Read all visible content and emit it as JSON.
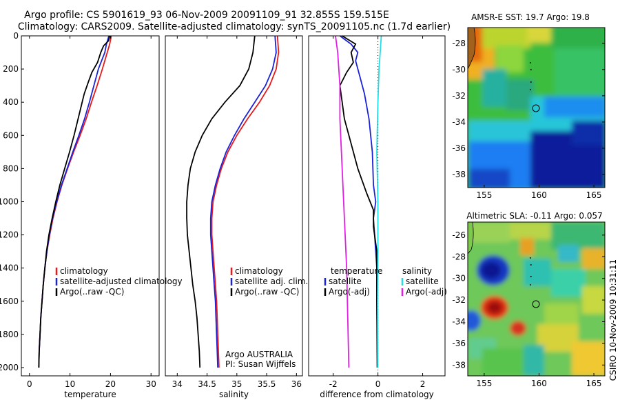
{
  "header": {
    "line1": "Argo profile: CS 5901619_93 06-Nov-2009 20091109_91 32.855S 159.515E",
    "line2": "Climatology: CARS2009. Satellite-adjusted climatology: synTS_20091105.nc (1.7d earlier)"
  },
  "side_label": "CSIRO 10-Nov-2009 10:31:11",
  "colors": {
    "red": "#e8191c",
    "blue": "#1a22d8",
    "black": "#000000",
    "cyan": "#22dde6",
    "magenta": "#e020e0"
  },
  "chart_data": [
    {
      "id": "temperature",
      "type": "line",
      "xlabel": "temperature",
      "ylabel": "",
      "xlim": [
        -2,
        32
      ],
      "ylim": [
        2050,
        0
      ],
      "xticks": [
        0,
        10,
        20,
        30
      ],
      "yticks": [
        0,
        200,
        400,
        600,
        800,
        1000,
        1200,
        1400,
        1600,
        1800,
        2000
      ],
      "series": [
        {
          "name": "climatology",
          "color": "#e8191c",
          "points": [
            [
              20.2,
              0
            ],
            [
              19.8,
              50
            ],
            [
              19.2,
              100
            ],
            [
              18.0,
              200
            ],
            [
              16.7,
              300
            ],
            [
              15.3,
              400
            ],
            [
              14.0,
              500
            ],
            [
              12.5,
              600
            ],
            [
              10.9,
              700
            ],
            [
              9.4,
              800
            ],
            [
              8.0,
              900
            ],
            [
              6.8,
              1000
            ],
            [
              5.8,
              1100
            ],
            [
              5.0,
              1200
            ],
            [
              4.3,
              1300
            ],
            [
              3.8,
              1400
            ],
            [
              3.4,
              1500
            ],
            [
              3.1,
              1600
            ],
            [
              2.8,
              1700
            ],
            [
              2.6,
              1800
            ],
            [
              2.4,
              1900
            ],
            [
              2.3,
              2000
            ]
          ]
        },
        {
          "name": "satellite-adjusted climatology",
          "color": "#1a22d8",
          "points": [
            [
              19.6,
              0
            ],
            [
              19.0,
              50
            ],
            [
              18.6,
              100
            ],
            [
              17.0,
              200
            ],
            [
              15.9,
              300
            ],
            [
              14.8,
              400
            ],
            [
              13.6,
              500
            ],
            [
              12.2,
              600
            ],
            [
              10.7,
              700
            ],
            [
              9.3,
              800
            ],
            [
              7.9,
              900
            ],
            [
              6.7,
              1000
            ],
            [
              5.7,
              1100
            ],
            [
              4.9,
              1200
            ],
            [
              4.3,
              1300
            ],
            [
              3.8,
              1400
            ],
            [
              3.4,
              1500
            ],
            [
              3.1,
              1600
            ],
            [
              2.8,
              1700
            ],
            [
              2.6,
              1800
            ],
            [
              2.4,
              1900
            ],
            [
              2.3,
              2000
            ]
          ]
        },
        {
          "name": "Argo(..raw -QC)",
          "color": "#000000",
          "points": [
            [
              19.8,
              0
            ],
            [
              19.5,
              30
            ],
            [
              18.3,
              60
            ],
            [
              17.6,
              100
            ],
            [
              16.8,
              160
            ],
            [
              15.4,
              220
            ],
            [
              14.5,
              280
            ],
            [
              13.5,
              350
            ],
            [
              12.8,
              420
            ],
            [
              12.0,
              500
            ],
            [
              11.0,
              600
            ],
            [
              9.9,
              700
            ],
            [
              8.7,
              800
            ],
            [
              7.5,
              900
            ],
            [
              6.5,
              1000
            ],
            [
              5.6,
              1100
            ],
            [
              4.8,
              1200
            ],
            [
              4.2,
              1300
            ],
            [
              3.8,
              1400
            ],
            [
              3.4,
              1500
            ],
            [
              3.1,
              1600
            ],
            [
              2.8,
              1700
            ],
            [
              2.6,
              1800
            ],
            [
              2.4,
              1900
            ],
            [
              2.3,
              2000
            ]
          ]
        }
      ],
      "legend": [
        {
          "label": "climatology",
          "color": "#e8191c"
        },
        {
          "label": "satellite-adjusted climatology",
          "color": "#1a22d8"
        },
        {
          "label": "Argo(..raw -QC)",
          "color": "#000000"
        }
      ]
    },
    {
      "id": "salinity",
      "type": "line",
      "xlabel": "salinity",
      "ylabel": "",
      "xlim": [
        33.8,
        36.1
      ],
      "ylim": [
        2050,
        0
      ],
      "xticks": [
        34,
        34.5,
        35,
        35.5,
        36
      ],
      "yticks": [],
      "series": [
        {
          "name": "climatology",
          "color": "#e8191c",
          "points": [
            [
              35.68,
              0
            ],
            [
              35.7,
              100
            ],
            [
              35.66,
              200
            ],
            [
              35.55,
              300
            ],
            [
              35.38,
              400
            ],
            [
              35.18,
              500
            ],
            [
              35.0,
              600
            ],
            [
              34.85,
              700
            ],
            [
              34.74,
              800
            ],
            [
              34.66,
              900
            ],
            [
              34.6,
              1000
            ],
            [
              34.58,
              1100
            ],
            [
              34.58,
              1200
            ],
            [
              34.6,
              1300
            ],
            [
              34.62,
              1400
            ],
            [
              34.64,
              1500
            ],
            [
              34.66,
              1600
            ],
            [
              34.67,
              1700
            ],
            [
              34.68,
              1800
            ],
            [
              34.69,
              1900
            ],
            [
              34.7,
              2000
            ]
          ]
        },
        {
          "name": "satellite adj. clim.",
          "color": "#1a22d8",
          "points": [
            [
              35.64,
              0
            ],
            [
              35.66,
              100
            ],
            [
              35.6,
              200
            ],
            [
              35.48,
              300
            ],
            [
              35.3,
              400
            ],
            [
              35.12,
              500
            ],
            [
              34.96,
              600
            ],
            [
              34.82,
              700
            ],
            [
              34.72,
              800
            ],
            [
              34.64,
              900
            ],
            [
              34.58,
              1000
            ],
            [
              34.56,
              1100
            ],
            [
              34.56,
              1200
            ],
            [
              34.58,
              1300
            ],
            [
              34.6,
              1400
            ],
            [
              34.62,
              1500
            ],
            [
              34.64,
              1600
            ],
            [
              34.65,
              1700
            ],
            [
              34.66,
              1800
            ],
            [
              34.67,
              1900
            ],
            [
              34.68,
              2000
            ]
          ]
        },
        {
          "name": "Argo(..raw -QC)",
          "color": "#000000",
          "points": [
            [
              35.3,
              0
            ],
            [
              35.27,
              100
            ],
            [
              35.2,
              200
            ],
            [
              35.05,
              300
            ],
            [
              34.8,
              400
            ],
            [
              34.58,
              500
            ],
            [
              34.42,
              600
            ],
            [
              34.3,
              700
            ],
            [
              34.22,
              800
            ],
            [
              34.18,
              900
            ],
            [
              34.16,
              1000
            ],
            [
              34.16,
              1100
            ],
            [
              34.17,
              1200
            ],
            [
              34.2,
              1300
            ],
            [
              34.23,
              1400
            ],
            [
              34.26,
              1500
            ],
            [
              34.3,
              1600
            ],
            [
              34.33,
              1700
            ],
            [
              34.35,
              1800
            ],
            [
              34.37,
              1900
            ],
            [
              34.38,
              2000
            ]
          ]
        }
      ],
      "legend": [
        {
          "label": "climatology",
          "color": "#e8191c"
        },
        {
          "label": "satellite adj. clim.",
          "color": "#1a22d8"
        },
        {
          "label": "Argo(..raw -QC)",
          "color": "#000000"
        }
      ],
      "annotation": [
        "Argo AUSTRALIA",
        "PI: Susan Wijffels"
      ]
    },
    {
      "id": "difference",
      "type": "line",
      "xlabel": "difference from climatology",
      "ylabel": "",
      "xlim": [
        -3.1,
        3.0
      ],
      "ylim": [
        2050,
        0
      ],
      "xticks": [
        -2,
        0,
        2
      ],
      "yticks": [],
      "zero_line": 0,
      "series": [
        {
          "name": "temperature satellite",
          "color": "#1a22d8",
          "points": [
            [
              -1.7,
              0
            ],
            [
              -1.2,
              50
            ],
            [
              -0.9,
              100
            ],
            [
              -1.0,
              150
            ],
            [
              -0.8,
              250
            ],
            [
              -0.6,
              350
            ],
            [
              -0.4,
              500
            ],
            [
              -0.25,
              700
            ],
            [
              -0.2,
              900
            ],
            [
              -0.1,
              1000
            ],
            [
              -0.2,
              1100
            ],
            [
              -0.15,
              1200
            ],
            [
              -0.05,
              1400
            ],
            [
              -0.05,
              1600
            ],
            [
              -0.03,
              1800
            ],
            [
              -0.02,
              2000
            ]
          ]
        },
        {
          "name": "temperature Argo(-adj)",
          "color": "#000000",
          "points": [
            [
              -1.6,
              0
            ],
            [
              -1.0,
              50
            ],
            [
              -1.2,
              100
            ],
            [
              -1.1,
              160
            ],
            [
              -1.4,
              220
            ],
            [
              -1.7,
              300
            ],
            [
              -1.6,
              400
            ],
            [
              -1.5,
              500
            ],
            [
              -1.2,
              650
            ],
            [
              -0.9,
              800
            ],
            [
              -0.5,
              950
            ],
            [
              -0.2,
              1050
            ],
            [
              -0.2,
              1150
            ],
            [
              -0.05,
              1300
            ],
            [
              -0.05,
              1600
            ],
            [
              -0.03,
              2000
            ]
          ]
        },
        {
          "name": "salinity satellite",
          "color": "#22dde6",
          "points": [
            [
              0.15,
              0
            ],
            [
              0.1,
              100
            ],
            [
              0.05,
              200
            ],
            [
              0.0,
              400
            ],
            [
              -0.05,
              700
            ],
            [
              0.0,
              1000
            ],
            [
              0.0,
              1300
            ],
            [
              -0.02,
              1600
            ],
            [
              -0.01,
              2000
            ]
          ]
        },
        {
          "name": "salinity Argo(-adj)",
          "color": "#e020e0",
          "points": [
            [
              -1.9,
              0
            ],
            [
              -1.8,
              100
            ],
            [
              -1.7,
              300
            ],
            [
              -1.7,
              500
            ],
            [
              -1.6,
              800
            ],
            [
              -1.5,
              1100
            ],
            [
              -1.4,
              1400
            ],
            [
              -1.35,
              1700
            ],
            [
              -1.3,
              2000
            ]
          ]
        }
      ],
      "legend_titles": [
        "temperature",
        "salinity"
      ],
      "legend_left": [
        {
          "label": "satellite",
          "color": "#1a22d8"
        },
        {
          "label": "Argo(-adj)",
          "color": "#000000"
        }
      ],
      "legend_right": [
        {
          "label": "satellite",
          "color": "#22dde6"
        },
        {
          "label": "Argo(-adj)",
          "color": "#e020e0"
        }
      ]
    },
    {
      "id": "sst-map",
      "type": "heatmap",
      "title": "AMSR-E SST: 19.7 Argo: 19.8",
      "xlim": [
        153.5,
        166
      ],
      "ylim": [
        -39,
        -26.8
      ],
      "xticks": [
        155,
        160,
        165
      ],
      "yticks": [
        -28,
        -30,
        -32,
        -34,
        -36,
        -38
      ],
      "float_position": [
        159.5,
        -32.86
      ]
    },
    {
      "id": "sla-map",
      "type": "heatmap",
      "title": "Altimetric SLA: -0.11 Argo: 0.057",
      "xlim": [
        153.5,
        166
      ],
      "ylim": [
        -39,
        -24.8
      ],
      "xticks": [
        155,
        160,
        165
      ],
      "yticks": [
        -26,
        -28,
        -30,
        -32,
        -34,
        -36,
        -38
      ],
      "float_position": [
        159.5,
        -32.86
      ]
    }
  ]
}
